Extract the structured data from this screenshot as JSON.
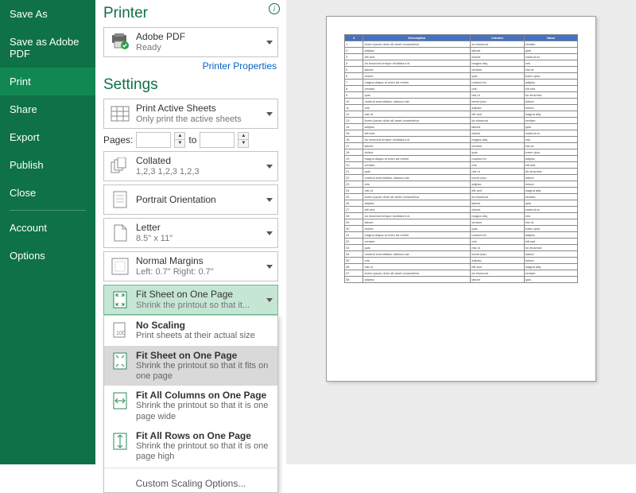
{
  "sidebar": {
    "items": [
      {
        "label": "Save As",
        "active": false
      },
      {
        "label": "Save as Adobe PDF",
        "active": false
      },
      {
        "label": "Print",
        "active": true
      },
      {
        "label": "Share",
        "active": false
      },
      {
        "label": "Export",
        "active": false
      },
      {
        "label": "Publish",
        "active": false
      },
      {
        "label": "Close",
        "active": false
      }
    ],
    "items2": [
      {
        "label": "Account"
      },
      {
        "label": "Options"
      }
    ]
  },
  "printer": {
    "heading": "Printer",
    "name": "Adobe PDF",
    "status": "Ready",
    "properties_link": "Printer Properties"
  },
  "settings": {
    "heading": "Settings",
    "active_sheets": {
      "title": "Print Active Sheets",
      "sub": "Only print the active sheets"
    },
    "pages_label": "Pages:",
    "pages_to": "to",
    "pages_from": "",
    "pages_to_val": "",
    "collated": {
      "title": "Collated",
      "sub": "1,2,3   1,2,3   1,2,3"
    },
    "orientation": {
      "title": "Portrait Orientation"
    },
    "paper": {
      "title": "Letter",
      "sub": "8.5\" x 11\""
    },
    "margins": {
      "title": "Normal Margins",
      "sub": "Left: 0.7\"  Right: 0.7\""
    },
    "scaling": {
      "title": "Fit Sheet on One Page",
      "sub": "Shrink the printout so that it..."
    },
    "scaling_opts": [
      {
        "title": "No Scaling",
        "sub": "Print sheets at their actual size"
      },
      {
        "title": "Fit Sheet on One Page",
        "sub": "Shrink the printout so that it fits on one page"
      },
      {
        "title": "Fit All Columns on One Page",
        "sub": "Shrink the printout so that it is one page wide"
      },
      {
        "title": "Fit All Rows on One Page",
        "sub": "Shrink the printout so that it is one page high"
      }
    ],
    "custom_scaling": "Custom Scaling Options..."
  },
  "preview": {
    "headers": [
      "#",
      "Description",
      "Column",
      "Value"
    ],
    "rows": 38
  },
  "colors": {
    "green": "#0e7246",
    "table_header": "#4472c4"
  }
}
